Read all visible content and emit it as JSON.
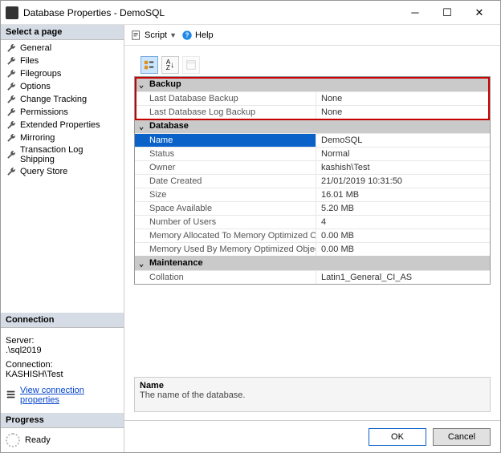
{
  "window": {
    "title": "Database Properties - DemoSQL"
  },
  "selectPage": {
    "header": "Select a page",
    "items": [
      "General",
      "Files",
      "Filegroups",
      "Options",
      "Change Tracking",
      "Permissions",
      "Extended Properties",
      "Mirroring",
      "Transaction Log Shipping",
      "Query Store"
    ]
  },
  "toolbar": {
    "script": "Script",
    "help": "Help"
  },
  "categories": [
    {
      "name": "Backup",
      "rows": [
        {
          "label": "Last Database Backup",
          "value": "None"
        },
        {
          "label": "Last Database Log Backup",
          "value": "None"
        }
      ]
    },
    {
      "name": "Database",
      "rows": [
        {
          "label": "Name",
          "value": "DemoSQL",
          "selected": true
        },
        {
          "label": "Status",
          "value": "Normal"
        },
        {
          "label": "Owner",
          "value": "kashish\\Test"
        },
        {
          "label": "Date Created",
          "value": "21/01/2019 10:31:50"
        },
        {
          "label": "Size",
          "value": "16.01 MB"
        },
        {
          "label": "Space Available",
          "value": "5.20 MB"
        },
        {
          "label": "Number of Users",
          "value": "4"
        },
        {
          "label": "Memory Allocated To Memory Optimized Ob",
          "value": "0.00 MB"
        },
        {
          "label": "Memory Used By Memory Optimized Objects",
          "value": "0.00 MB"
        }
      ]
    },
    {
      "name": "Maintenance",
      "rows": [
        {
          "label": "Collation",
          "value": "Latin1_General_CI_AS"
        }
      ]
    }
  ],
  "description": {
    "name": "Name",
    "text": "The name of the database."
  },
  "connection": {
    "header": "Connection",
    "serverLabel": "Server:",
    "server": ".\\sql2019",
    "connLabel": "Connection:",
    "conn": "KASHISH\\Test",
    "link": "View connection properties"
  },
  "progress": {
    "header": "Progress",
    "status": "Ready"
  },
  "buttons": {
    "ok": "OK",
    "cancel": "Cancel"
  },
  "colors": {
    "categoryBg": "#cacaca",
    "selectBg": "#0a62c9",
    "highlight": "#c70000",
    "leftHeaderBg": "#d6dce5"
  }
}
